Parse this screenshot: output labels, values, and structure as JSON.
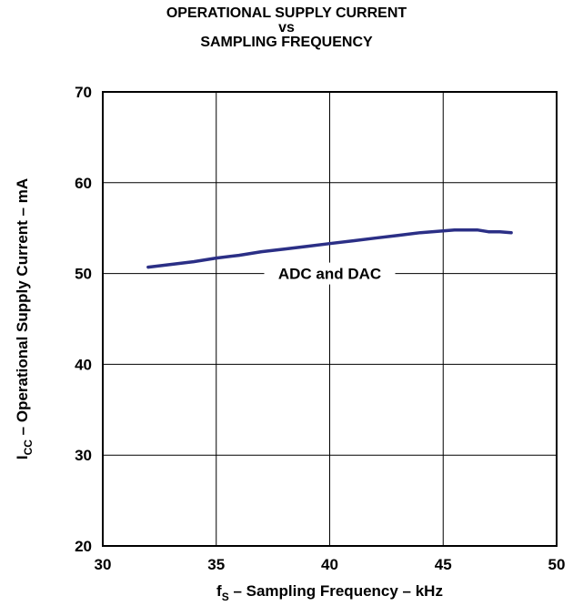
{
  "chart_data": {
    "type": "line",
    "title_lines": [
      "OPERATIONAL SUPPLY CURRENT",
      "vs",
      "SAMPLING FREQUENCY"
    ],
    "xlabel": {
      "main": "f",
      "sub": "S",
      "rest": " – Sampling Frequency – kHz"
    },
    "ylabel": {
      "main": "I",
      "sub": "CC",
      "rest": " – Operational Supply Current – mA"
    },
    "xlim": [
      30,
      50
    ],
    "ylim": [
      20,
      70
    ],
    "x_ticks": [
      "30",
      "35",
      "40",
      "45",
      "50"
    ],
    "y_ticks": [
      "20",
      "30",
      "40",
      "50",
      "60",
      "70"
    ],
    "grid": true,
    "line_color": "#2b2f86",
    "series": [
      {
        "name": "ADC and DAC",
        "x": [
          32,
          33,
          34,
          35,
          36,
          37,
          38,
          39,
          40,
          41,
          42,
          43,
          44,
          45,
          45.5,
          46,
          46.5,
          47,
          47.5,
          48
        ],
        "y": [
          50.7,
          51.0,
          51.3,
          51.7,
          52.0,
          52.4,
          52.7,
          53.0,
          53.3,
          53.6,
          53.9,
          54.2,
          54.5,
          54.7,
          54.8,
          54.8,
          54.8,
          54.6,
          54.6,
          54.5
        ]
      }
    ],
    "annotation": {
      "text": "ADC and DAC",
      "x": 40,
      "y": 50
    }
  }
}
